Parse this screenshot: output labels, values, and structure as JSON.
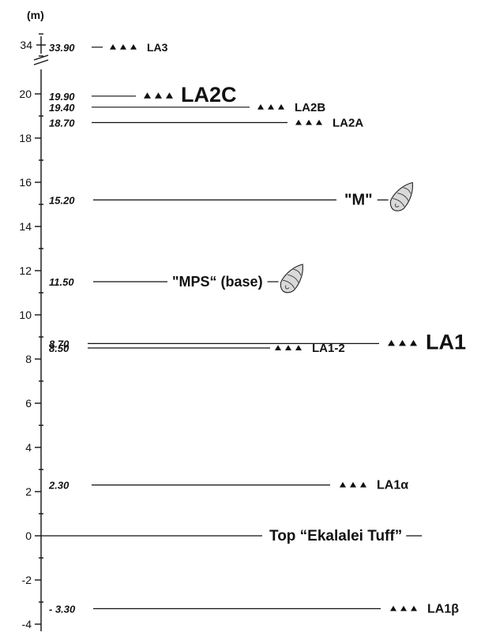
{
  "axis": {
    "unit": "(m)",
    "upper_ticks": [
      {
        "value": 34,
        "label": "34"
      }
    ],
    "lower_ticks": [
      {
        "value": 20,
        "label": "20"
      },
      {
        "value": 18,
        "label": "18"
      },
      {
        "value": 16,
        "label": "16"
      },
      {
        "value": 14,
        "label": "14"
      },
      {
        "value": 12,
        "label": "12"
      },
      {
        "value": 10,
        "label": "10"
      },
      {
        "value": 8,
        "label": "8"
      },
      {
        "value": 6,
        "label": "6"
      },
      {
        "value": 4,
        "label": "4"
      },
      {
        "value": 2,
        "label": "2"
      },
      {
        "value": 0,
        "label": "0"
      },
      {
        "value": -2,
        "label": "-2"
      },
      {
        "value": -4,
        "label": "-4"
      }
    ],
    "range_lower": [
      -4.4,
      20.4
    ],
    "break_between": [
      20.4,
      33.5
    ]
  },
  "horizons": [
    {
      "id": "la3",
      "depth": 33.9,
      "depth_label": "33.90",
      "name": "LA3",
      "symbol": "tuff",
      "size": "small"
    },
    {
      "id": "la2c",
      "depth": 19.9,
      "depth_label": "19.90",
      "name": "LA2C",
      "symbol": "tuff",
      "size": "large"
    },
    {
      "id": "la2b",
      "depth": 19.4,
      "depth_label": "19.40",
      "name": "LA2B",
      "symbol": "tuff",
      "size": "small"
    },
    {
      "id": "la2a",
      "depth": 18.7,
      "depth_label": "18.70",
      "name": "LA2A",
      "symbol": "tuff",
      "size": "small"
    },
    {
      "id": "m",
      "depth": 15.2,
      "depth_label": "15.20",
      "name": "\"M\"",
      "symbol": "shell",
      "size": "medium"
    },
    {
      "id": "mps",
      "depth": 11.5,
      "depth_label": "11.50",
      "name": "\"MPS“ (base)",
      "symbol": "shell",
      "size": "medium"
    },
    {
      "id": "la1",
      "depth": 8.7,
      "depth_label": "8.70",
      "name": "LA1",
      "symbol": "tuff",
      "size": "large"
    },
    {
      "id": "la1-2",
      "depth": 8.5,
      "depth_label": "8.50",
      "name": "LA1-2",
      "symbol": "tuff",
      "size": "small"
    },
    {
      "id": "la1-alpha",
      "depth": 2.3,
      "depth_label": "2.30",
      "name": "LA1α",
      "symbol": "tuff",
      "size": "small"
    },
    {
      "id": "top-ekalalei",
      "depth": 0,
      "depth_label": "",
      "name": "Top “Ekalalei Tuff”",
      "symbol": "none",
      "size": "medium"
    },
    {
      "id": "la1-beta",
      "depth": -3.3,
      "depth_label": "- 3.30",
      "name": "LA1β",
      "symbol": "tuff",
      "size": "small"
    }
  ]
}
